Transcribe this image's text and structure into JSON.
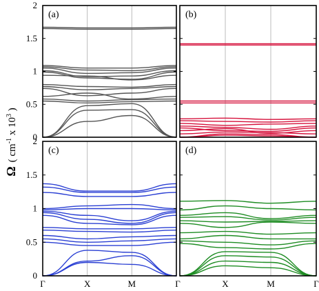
{
  "chart_data": {
    "type": "line",
    "ylabel_parts": [
      "Ω",
      "( cm",
      "-1",
      " x 10",
      "3",
      " )"
    ],
    "ylim": [
      0,
      2
    ],
    "yticks": [
      "0",
      "0.5",
      "1",
      "1.5",
      "2"
    ],
    "xticks": [
      "Γ",
      "X",
      "M",
      "Γ"
    ],
    "grid": "vertical lines at X and M",
    "panels": [
      {
        "label": "(a)",
        "color": "#555555",
        "series": [
          {
            "x": [
              0,
              1,
              2,
              3
            ],
            "y": [
              1.65,
              1.64,
              1.64,
              1.65
            ]
          },
          {
            "x": [
              0,
              1,
              2,
              3
            ],
            "y": [
              1.67,
              1.66,
              1.66,
              1.67
            ]
          },
          {
            "x": [
              0,
              1,
              2,
              3
            ],
            "y": [
              1.09,
              1.05,
              1.05,
              1.09
            ]
          },
          {
            "x": [
              0,
              1,
              2,
              3
            ],
            "y": [
              1.07,
              1.02,
              1.01,
              1.07
            ]
          },
          {
            "x": [
              0,
              1,
              2,
              3
            ],
            "y": [
              1.05,
              0.97,
              0.98,
              1.05
            ]
          },
          {
            "x": [
              0,
              1,
              2,
              3
            ],
            "y": [
              1.01,
              0.92,
              0.93,
              1.01
            ]
          },
          {
            "x": [
              0,
              1,
              2,
              3
            ],
            "y": [
              0.99,
              0.9,
              0.88,
              0.99
            ]
          },
          {
            "x": [
              0,
              1,
              2,
              3
            ],
            "y": [
              0.94,
              0.93,
              0.87,
              0.94
            ]
          },
          {
            "x": [
              0,
              1,
              2,
              3
            ],
            "y": [
              0.8,
              0.77,
              0.76,
              0.8
            ]
          },
          {
            "x": [
              0,
              1,
              2,
              3
            ],
            "y": [
              0.77,
              0.72,
              0.74,
              0.77
            ]
          },
          {
            "x": [
              0,
              1,
              2,
              3
            ],
            "y": [
              0.74,
              0.63,
              0.67,
              0.74
            ]
          },
          {
            "x": [
              0,
              1,
              2,
              3
            ],
            "y": [
              0.62,
              0.67,
              0.58,
              0.62
            ]
          },
          {
            "x": [
              0,
              1,
              2,
              3
            ],
            "y": [
              0.58,
              0.55,
              0.57,
              0.58
            ]
          },
          {
            "x": [
              0,
              1,
              2,
              3
            ],
            "y": [
              0.55,
              0.52,
              0.54,
              0.55
            ]
          },
          {
            "x": [
              0,
              1,
              2,
              3
            ],
            "y": [
              0,
              0.48,
              0.51,
              0
            ]
          },
          {
            "x": [
              0,
              1,
              2,
              3
            ],
            "y": [
              0,
              0.41,
              0.42,
              0
            ]
          },
          {
            "x": [
              0,
              1,
              2,
              3
            ],
            "y": [
              0,
              0.24,
              0.33,
              0
            ]
          }
        ]
      },
      {
        "label": "(b)",
        "color": "#d6123c",
        "series": [
          {
            "x": [
              0,
              1,
              2,
              3
            ],
            "y": [
              1.4,
              1.4,
              1.4,
              1.4
            ]
          },
          {
            "x": [
              0,
              1,
              2,
              3
            ],
            "y": [
              1.42,
              1.42,
              1.42,
              1.42
            ]
          },
          {
            "x": [
              0,
              1,
              2,
              3
            ],
            "y": [
              0.55,
              0.55,
              0.55,
              0.55
            ]
          },
          {
            "x": [
              0,
              1,
              2,
              3
            ],
            "y": [
              0.52,
              0.52,
              0.52,
              0.52
            ]
          },
          {
            "x": [
              0,
              1,
              2,
              3
            ],
            "y": [
              0.28,
              0.29,
              0.27,
              0.28
            ]
          },
          {
            "x": [
              0,
              1,
              2,
              3
            ],
            "y": [
              0.25,
              0.24,
              0.23,
              0.25
            ]
          },
          {
            "x": [
              0,
              1,
              2,
              3
            ],
            "y": [
              0.21,
              0.18,
              0.2,
              0.21
            ]
          },
          {
            "x": [
              0,
              1,
              2,
              3
            ],
            "y": [
              0.17,
              0.15,
              0.12,
              0.17
            ]
          },
          {
            "x": [
              0,
              1,
              2,
              3
            ],
            "y": [
              0.14,
              0.1,
              0.09,
              0.14
            ]
          },
          {
            "x": [
              0,
              1,
              2,
              3
            ],
            "y": [
              0.1,
              0.13,
              0.06,
              0.1
            ]
          },
          {
            "x": [
              0,
              1,
              2,
              3
            ],
            "y": [
              0.05,
              0.08,
              0.07,
              0.05
            ]
          },
          {
            "x": [
              0,
              1,
              2,
              3
            ],
            "y": [
              0,
              0.05,
              0.04,
              0
            ]
          },
          {
            "x": [
              0,
              1,
              2,
              3
            ],
            "y": [
              0,
              0.03,
              0.02,
              0
            ]
          }
        ]
      },
      {
        "label": "(c)",
        "color": "#2a3fd3",
        "series": [
          {
            "x": [
              0,
              1,
              2,
              3
            ],
            "y": [
              1.37,
              1.26,
              1.26,
              1.37
            ]
          },
          {
            "x": [
              0,
              1,
              2,
              3
            ],
            "y": [
              1.32,
              1.24,
              1.24,
              1.32
            ]
          },
          {
            "x": [
              0,
              1,
              2,
              3
            ],
            "y": [
              1.24,
              1.18,
              1.18,
              1.24
            ]
          },
          {
            "x": [
              0,
              1,
              2,
              3
            ],
            "y": [
              1.0,
              1.04,
              1.06,
              1.0
            ]
          },
          {
            "x": [
              0,
              1,
              2,
              3
            ],
            "y": [
              0.98,
              1.0,
              1.0,
              0.98
            ]
          },
          {
            "x": [
              0,
              1,
              2,
              3
            ],
            "y": [
              0.96,
              0.9,
              0.82,
              0.96
            ]
          },
          {
            "x": [
              0,
              1,
              2,
              3
            ],
            "y": [
              0.94,
              0.84,
              0.78,
              0.94
            ]
          },
          {
            "x": [
              0,
              1,
              2,
              3
            ],
            "y": [
              0.9,
              0.78,
              0.76,
              0.9
            ]
          },
          {
            "x": [
              0,
              1,
              2,
              3
            ],
            "y": [
              0.72,
              0.7,
              0.7,
              0.72
            ]
          },
          {
            "x": [
              0,
              1,
              2,
              3
            ],
            "y": [
              0.68,
              0.66,
              0.65,
              0.68
            ]
          },
          {
            "x": [
              0,
              1,
              2,
              3
            ],
            "y": [
              0.6,
              0.55,
              0.58,
              0.6
            ]
          },
          {
            "x": [
              0,
              1,
              2,
              3
            ],
            "y": [
              0.55,
              0.5,
              0.52,
              0.55
            ]
          },
          {
            "x": [
              0,
              1,
              2,
              3
            ],
            "y": [
              0.5,
              0.45,
              0.45,
              0.5
            ]
          },
          {
            "x": [
              0,
              1,
              2,
              3
            ],
            "y": [
              0,
              0.38,
              0.35,
              0
            ]
          },
          {
            "x": [
              0,
              1,
              2,
              3
            ],
            "y": [
              0,
              0.22,
              0.3,
              0
            ]
          },
          {
            "x": [
              0,
              1,
              2,
              3
            ],
            "y": [
              0,
              0.2,
              0.17,
              0
            ]
          }
        ]
      },
      {
        "label": "(d)",
        "color": "#1e8c23",
        "series": [
          {
            "x": [
              0,
              1,
              2,
              3
            ],
            "y": [
              1.11,
              1.12,
              1.08,
              1.11
            ]
          },
          {
            "x": [
              0,
              1,
              2,
              3
            ],
            "y": [
              0.98,
              1.04,
              1.0,
              0.98
            ]
          },
          {
            "x": [
              0,
              1,
              2,
              3
            ],
            "y": [
              0.9,
              0.94,
              0.85,
              0.9
            ]
          },
          {
            "x": [
              0,
              1,
              2,
              3
            ],
            "y": [
              0.87,
              0.88,
              0.83,
              0.87
            ]
          },
          {
            "x": [
              0,
              1,
              2,
              3
            ],
            "y": [
              0.82,
              0.8,
              0.81,
              0.82
            ]
          },
          {
            "x": [
              0,
              1,
              2,
              3
            ],
            "y": [
              0.78,
              0.72,
              0.8,
              0.78
            ]
          },
          {
            "x": [
              0,
              1,
              2,
              3
            ],
            "y": [
              0.64,
              0.66,
              0.62,
              0.64
            ]
          },
          {
            "x": [
              0,
              1,
              2,
              3
            ],
            "y": [
              0.55,
              0.6,
              0.55,
              0.55
            ]
          },
          {
            "x": [
              0,
              1,
              2,
              3
            ],
            "y": [
              0.52,
              0.5,
              0.46,
              0.52
            ]
          },
          {
            "x": [
              0,
              1,
              2,
              3
            ],
            "y": [
              0.48,
              0.42,
              0.4,
              0.48
            ]
          },
          {
            "x": [
              0,
              1,
              2,
              3
            ],
            "y": [
              0,
              0.36,
              0.35,
              0
            ]
          },
          {
            "x": [
              0,
              1,
              2,
              3
            ],
            "y": [
              0,
              0.3,
              0.28,
              0
            ]
          },
          {
            "x": [
              0,
              1,
              2,
              3
            ],
            "y": [
              0,
              0.22,
              0.2,
              0
            ]
          },
          {
            "x": [
              0,
              1,
              2,
              3
            ],
            "y": [
              0,
              0.15,
              0.12,
              0
            ]
          }
        ]
      }
    ]
  }
}
